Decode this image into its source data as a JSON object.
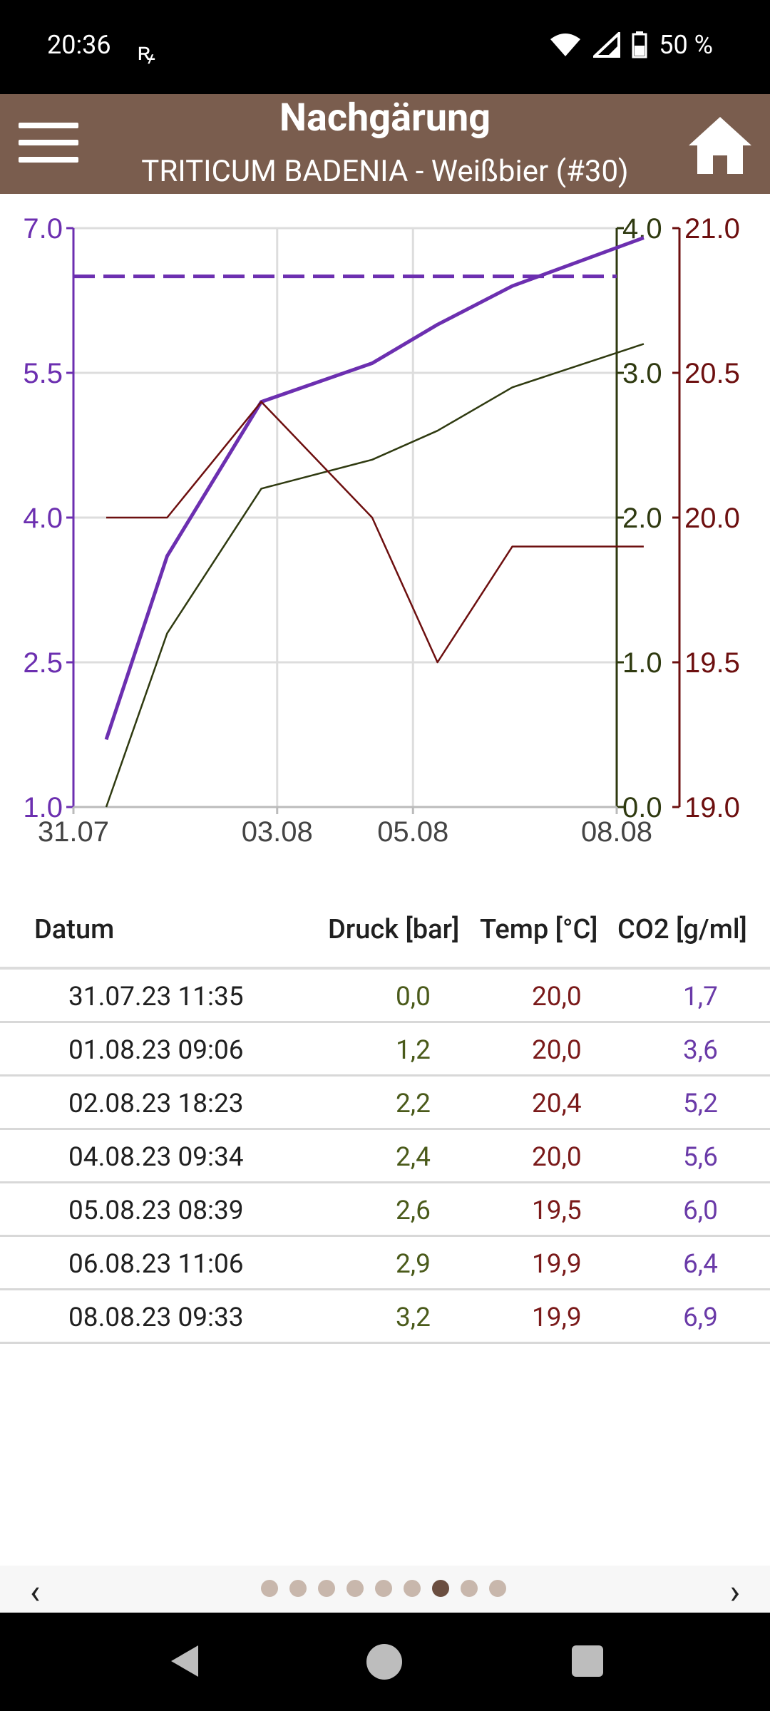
{
  "status": {
    "time": "20:36",
    "battery": "50 %"
  },
  "app_bar": {
    "title": "Nachgärung",
    "subtitle": "TRITICUM BADENIA - Weißbier (#30)"
  },
  "colors": {
    "co2": "#6c2fb0",
    "druck": "#2f3a10",
    "temp": "#6d0f0f",
    "header": "#7a5d4e"
  },
  "chart_data": {
    "type": "line",
    "x": [
      "31.07.23 11:35",
      "01.08.23 09:06",
      "02.08.23 18:23",
      "04.08.23 09:34",
      "05.08.23 08:39",
      "06.08.23 11:06",
      "08.08.23 09:33"
    ],
    "x_tick_labels": [
      "31.07",
      "03.08",
      "05.08",
      "08.08"
    ],
    "left_axis": {
      "ticks": [
        "1.0",
        "2.5",
        "4.0",
        "5.5",
        "7.0"
      ],
      "range": [
        1.0,
        7.0
      ]
    },
    "right_axis_1": {
      "ticks": [
        "0.0",
        "1.0",
        "2.0",
        "3.0",
        "4.0"
      ],
      "range": [
        0.0,
        4.0
      ]
    },
    "right_axis_2": {
      "ticks": [
        "19.0",
        "19.5",
        "20.0",
        "20.5",
        "21.0"
      ],
      "range": [
        19.0,
        21.0
      ]
    },
    "series": [
      {
        "key": "co2",
        "axis": "left",
        "values": [
          1.7,
          3.6,
          5.2,
          5.6,
          6.0,
          6.4,
          6.9
        ]
      },
      {
        "key": "druck",
        "axis": "right_axis_1",
        "values": [
          0.0,
          1.2,
          2.2,
          2.4,
          2.6,
          2.9,
          3.2
        ]
      },
      {
        "key": "temp",
        "axis": "right_axis_2",
        "values": [
          20.0,
          20.0,
          20.4,
          20.0,
          19.5,
          19.9,
          19.9
        ]
      }
    ],
    "target_line": {
      "axis": "left",
      "value": 6.5,
      "style": "dashed"
    }
  },
  "table": {
    "headers": {
      "date": "Datum",
      "druck": "Druck [bar]",
      "temp": "Temp [°C]",
      "co2": "CO2 [g/ml]"
    },
    "rows": [
      {
        "date": "31.07.23 11:35",
        "druck": "0,0",
        "temp": "20,0",
        "co2": "1,7"
      },
      {
        "date": "01.08.23 09:06",
        "druck": "1,2",
        "temp": "20,0",
        "co2": "3,6"
      },
      {
        "date": "02.08.23 18:23",
        "druck": "2,2",
        "temp": "20,4",
        "co2": "5,2"
      },
      {
        "date": "04.08.23 09:34",
        "druck": "2,4",
        "temp": "20,0",
        "co2": "5,6"
      },
      {
        "date": "05.08.23 08:39",
        "druck": "2,6",
        "temp": "19,5",
        "co2": "6,0"
      },
      {
        "date": "06.08.23 11:06",
        "druck": "2,9",
        "temp": "19,9",
        "co2": "6,4"
      },
      {
        "date": "08.08.23 09:33",
        "druck": "3,2",
        "temp": "19,9",
        "co2": "6,9"
      }
    ]
  },
  "pager": {
    "pages": 9,
    "active_index": 6,
    "prev_icon": "chevron-left-icon",
    "next_icon": "chevron-right-icon"
  }
}
